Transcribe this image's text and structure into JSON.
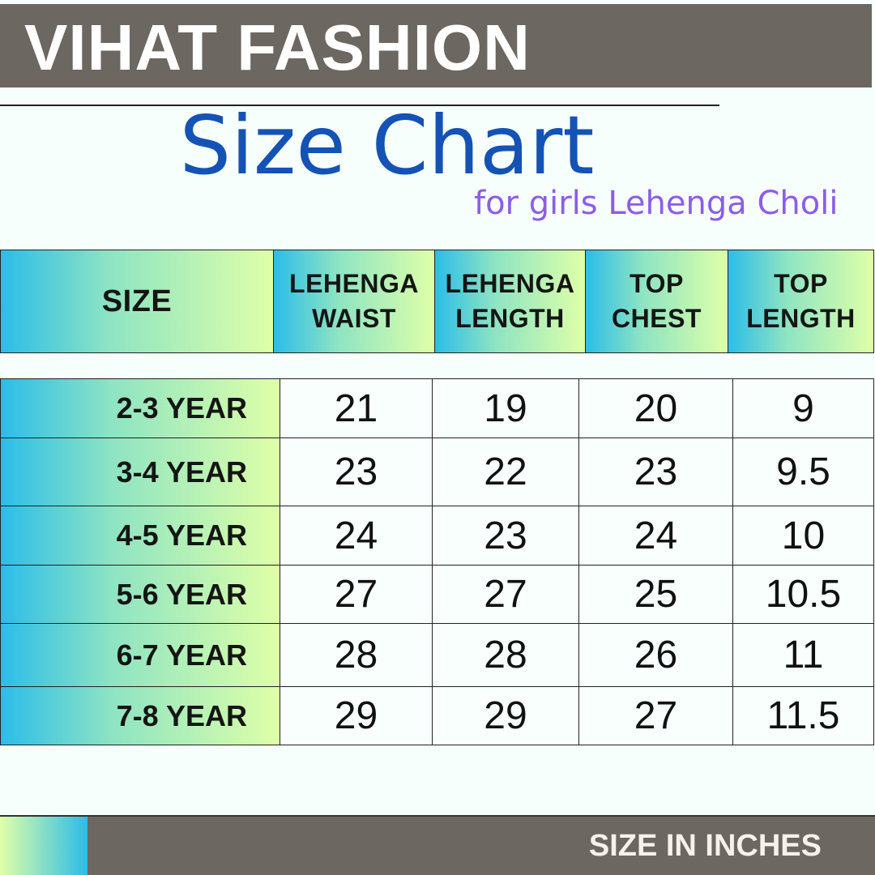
{
  "brand": "VIHAT FASHION",
  "title": "Size Chart",
  "subtitle": "for girls Lehenga Choli",
  "colors": {
    "brand_bar": "#6c6760",
    "title": "#1453b5",
    "subtitle": "#8c5de8",
    "gradient_start": "#2bbde8",
    "gradient_end": "#dfffa8"
  },
  "table": {
    "headers": [
      [
        "SIZE"
      ],
      [
        "LEHENGA",
        "WAIST"
      ],
      [
        "LEHENGA",
        "LENGTH"
      ],
      [
        "TOP",
        "CHEST"
      ],
      [
        "TOP",
        "LENGTH"
      ]
    ],
    "rows": [
      {
        "size": "2-3 YEAR",
        "values": [
          "21",
          "19",
          "20",
          "9"
        ]
      },
      {
        "size": "3-4 YEAR",
        "values": [
          "23",
          "22",
          "23",
          "9.5"
        ]
      },
      {
        "size": "4-5 YEAR",
        "values": [
          "24",
          "23",
          "24",
          "10"
        ]
      },
      {
        "size": "5-6 YEAR",
        "values": [
          "27",
          "27",
          "25",
          "10.5"
        ]
      },
      {
        "size": "6-7 YEAR",
        "values": [
          "28",
          "28",
          "26",
          "11"
        ]
      },
      {
        "size": "7-8 YEAR",
        "values": [
          "29",
          "29",
          "27",
          "11.5"
        ]
      }
    ]
  },
  "footer": "SIZE IN INCHES"
}
